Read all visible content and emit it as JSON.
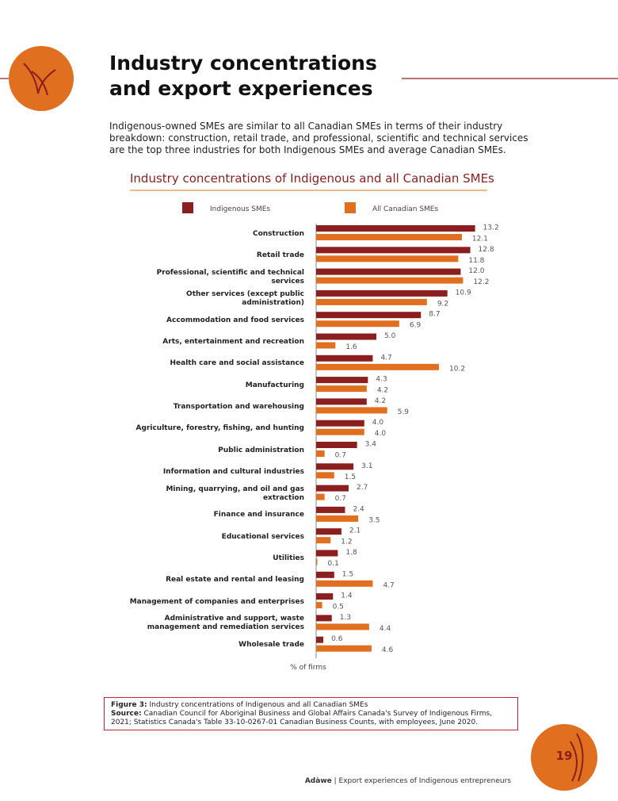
{
  "header": {
    "title": "Industry concentrations and export experiences"
  },
  "intro": "Indigenous-owned SMEs are similar to all Canadian SMEs in terms of their industry breakdown: construction, retail trade, and professional, scientific and technical services are the top three industries for both Indigenous SMEs and average Canadian SMEs.",
  "chart_data": {
    "type": "bar",
    "orientation": "horizontal",
    "title": "Industry concentrations of Indigenous and all Canadian SMEs",
    "xlabel": "% of firms",
    "xlim": [
      0,
      15
    ],
    "categories": [
      "Construction",
      "Retail trade",
      "Professional, scientific and technical services",
      "Other services (except public administration)",
      "Accommodation and food services",
      "Arts, entertainment and recreation",
      "Health care and social assistance",
      "Manufacturing",
      "Transportation and warehousing",
      "Agriculture, forestry, fishing, and hunting",
      "Public administration",
      "Information and cultural industries",
      "Mining, quarrying, and oil and gas extraction",
      "Finance and insurance",
      "Educational services",
      "Utilities",
      "Real estate and rental and leasing",
      "Management of companies and enterprises",
      "Administrative and support, waste management and remediation services",
      "Wholesale trade"
    ],
    "series": [
      {
        "name": "Indigenous SMEs",
        "color": "#8b1e1e",
        "values": [
          13.2,
          12.8,
          12.0,
          10.9,
          8.7,
          5.0,
          4.7,
          4.3,
          4.2,
          4.0,
          3.4,
          3.1,
          2.7,
          2.4,
          2.1,
          1.8,
          1.5,
          1.4,
          1.3,
          0.6
        ],
        "value_labels": [
          "13.2",
          "12.8",
          "12.0",
          "10.9",
          "8.7",
          "5.0",
          "4.7",
          "4.3",
          "4.2",
          "4.0",
          "3.4",
          "3.1",
          "2.7",
          "2.4",
          "2.1",
          "1.8",
          "1.5",
          "1.4",
          "1.3",
          "0.6"
        ]
      },
      {
        "name": "All Canadian SMEs",
        "color": "#e07020",
        "values": [
          12.1,
          11.8,
          12.2,
          9.2,
          6.9,
          1.6,
          10.2,
          4.2,
          5.9,
          4.0,
          0.7,
          1.5,
          0.7,
          3.5,
          1.2,
          0.1,
          4.7,
          0.5,
          4.4,
          4.6
        ],
        "value_labels": [
          "12.1",
          "11.8",
          "12.2",
          "9.2",
          "6.9",
          "1.6",
          "10.2",
          "4.2",
          "5.9",
          "4.0",
          "0.7",
          "1.5",
          "0.7",
          "3.5",
          "1.2",
          "0.1",
          "4.7",
          "0.5",
          "4.4",
          "4.6"
        ]
      }
    ]
  },
  "caption": {
    "figure_label": "Figure 3:",
    "figure_text": "Industry concentrations of Indigenous and all Canadian SMEs",
    "source_label": "Source:",
    "source_text": "Canadian Council for Aboriginal Business and Global Affairs Canada's Survey of Indigenous Firms, 2021; Statistics Canada's Table 33-10-0267-01 Canadian Business Counts, with employees, June 2020."
  },
  "footer": {
    "brand": "Adàwe",
    "text": "Export experiences of Indigenous entrepreneurs",
    "page_number": "19"
  }
}
